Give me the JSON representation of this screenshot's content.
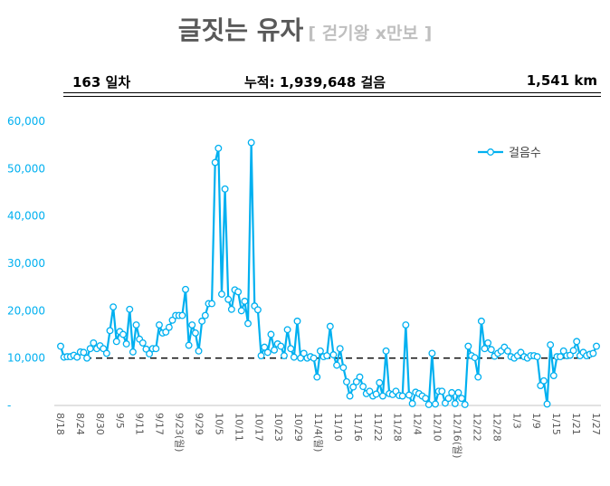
{
  "title": {
    "main": "글짓는 유자",
    "sub": "[ 걷기왕 ⅹ만보 ]"
  },
  "header": {
    "days": "163 일차",
    "total": "누적: 1,939,648 걸음",
    "distance": "1,541 km"
  },
  "colors": {
    "series": "#00b0f0",
    "goal": "#000000",
    "axis": "#d9d9d9"
  },
  "chart_data": {
    "type": "line",
    "title": "",
    "legend": [
      "걸음수"
    ],
    "legend_position": "top-right",
    "ylim": [
      0,
      60000
    ],
    "yticks": [
      0,
      10000,
      20000,
      30000,
      40000,
      50000,
      60000
    ],
    "ytick_labels": [
      "-",
      "10,000",
      "20,000",
      "30,000",
      "40,000",
      "50,000",
      "60,000"
    ],
    "goal_line": 10000,
    "xtick_labels": [
      "8/18",
      "8/24",
      "8/30",
      "9/5",
      "9/11",
      "9/17",
      "9/23(월)",
      "9/29",
      "10/5",
      "10/11",
      "10/17",
      "10/23",
      "10/29",
      "11/4(월)",
      "11/10",
      "11/16",
      "11/22",
      "11/28",
      "12/4",
      "12/10",
      "12/16(월)",
      "12/22",
      "12/28",
      "1/3",
      "1/9",
      "1/15",
      "1/21",
      "1/27"
    ],
    "series": [
      {
        "name": "걸음수",
        "values": [
          12500,
          10200,
          10300,
          10300,
          10600,
          10200,
          11300,
          11200,
          10000,
          12000,
          13200,
          12000,
          12600,
          12000,
          11000,
          15800,
          20800,
          13500,
          15600,
          15000,
          13000,
          20300,
          11300,
          17000,
          14000,
          13200,
          11900,
          10900,
          12000,
          12000,
          17000,
          15300,
          15500,
          16500,
          18000,
          19000,
          19000,
          19000,
          24500,
          12700,
          17000,
          15300,
          11500,
          17800,
          19000,
          21500,
          21500,
          51300,
          54300,
          23500,
          45700,
          22400,
          20300,
          24400,
          24000,
          20000,
          22000,
          17300,
          55500,
          21000,
          20200,
          10500,
          12300,
          11200,
          15000,
          11700,
          13000,
          12500,
          10500,
          16000,
          12000,
          10200,
          17800,
          10000,
          11000,
          10000,
          10300,
          10000,
          6000,
          11500,
          10300,
          10500,
          16700,
          10700,
          8500,
          12000,
          8000,
          5000,
          2000,
          3900,
          5000,
          6000,
          4000,
          2500,
          3000,
          2000,
          2400,
          4800,
          2000,
          11500,
          2500,
          2300,
          3000,
          2100,
          2000,
          17000,
          2200,
          400,
          2800,
          2500,
          2000,
          1500,
          200,
          11000,
          300,
          3000,
          3000,
          500,
          1500,
          2700,
          400,
          2700,
          1500,
          200,
          12500,
          10500,
          10100,
          6000,
          17800,
          12000,
          13200,
          11800,
          10400,
          11000,
          11500,
          12300,
          11500,
          10300,
          10000,
          10500,
          11200,
          10300,
          10000,
          10500,
          10500,
          10300,
          4200,
          5200,
          300,
          12800,
          6300,
          10300,
          10300,
          11500,
          10500,
          10600,
          11600,
          13500,
          10500,
          11200,
          10500,
          10800,
          11000,
          12500
        ]
      }
    ]
  }
}
